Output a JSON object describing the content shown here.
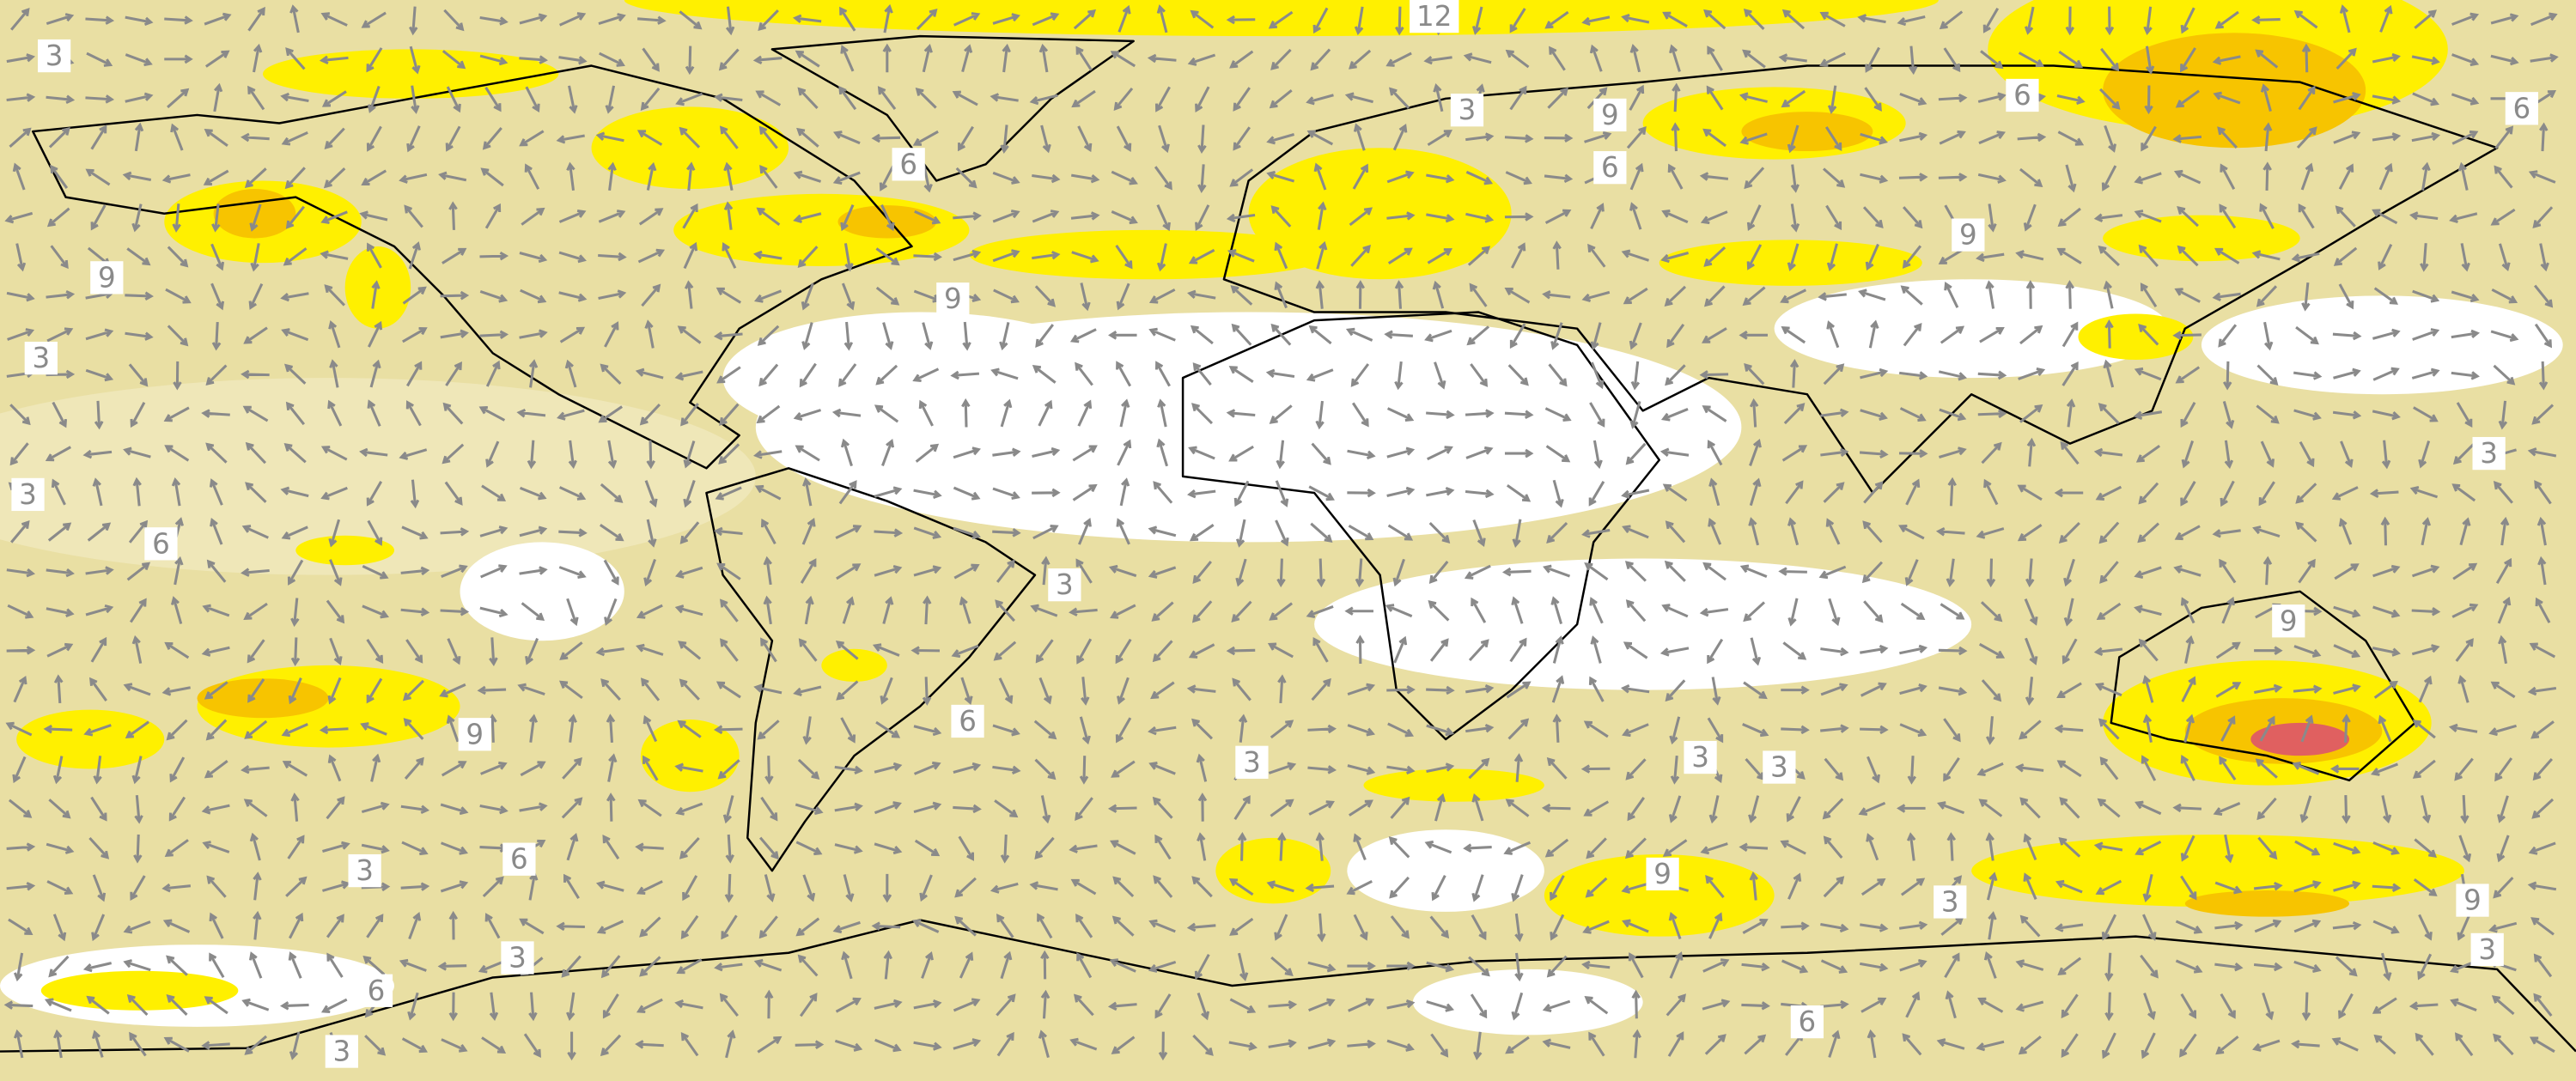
{
  "map": {
    "contour_labels": [
      "12",
      "3",
      "6",
      "3",
      "9",
      "6",
      "6",
      "6",
      "9",
      "9",
      "9",
      "3",
      "3",
      "6",
      "3",
      "3",
      "9",
      "9",
      "6",
      "3",
      "3",
      "3",
      "3",
      "6",
      "9",
      "3",
      "9",
      "3",
      "6",
      "3",
      "6",
      "3"
    ]
  }
}
